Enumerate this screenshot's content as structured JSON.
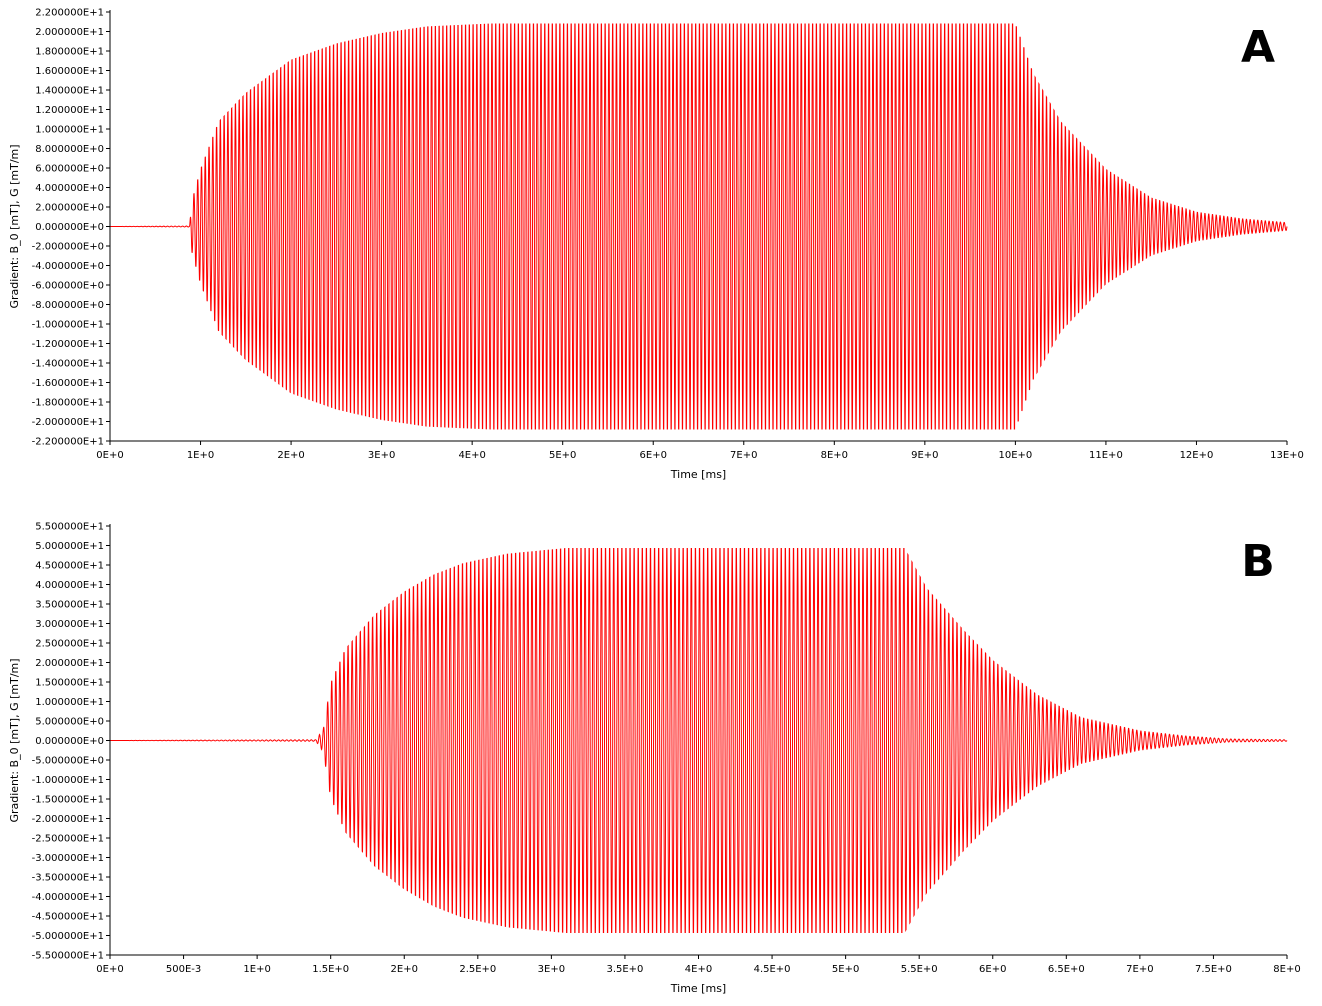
{
  "chart_data": [
    {
      "type": "line",
      "panel_label": "A",
      "title": "",
      "xlabel": "Time [ms]",
      "ylabel": "Gradient: B_0 [mT], G [mT/m]",
      "xlim": [
        0,
        13
      ],
      "ylim": [
        -22,
        22
      ],
      "grid": false,
      "series_color": "#ff0000",
      "x_ticks": [
        0,
        1,
        2,
        3,
        4,
        5,
        6,
        7,
        8,
        9,
        10,
        11,
        12,
        13
      ],
      "x_tick_labels": [
        "0E+0",
        "1E+0",
        "2E+0",
        "3E+0",
        "4E+0",
        "5E+0",
        "6E+0",
        "7E+0",
        "8E+0",
        "9E+0",
        "10E+0",
        "11E+0",
        "12E+0",
        "13E+0"
      ],
      "y_ticks": [
        22,
        20,
        18,
        16,
        14,
        12,
        10,
        8,
        6,
        4,
        2,
        0,
        -2,
        -4,
        -6,
        -8,
        -10,
        -12,
        -14,
        -16,
        -18,
        -20,
        -22
      ],
      "y_tick_labels": [
        "2.200000E+1",
        "2.000000E+1",
        "1.800000E+1",
        "1.600000E+1",
        "1.400000E+1",
        "1.200000E+1",
        "1.000000E+1",
        "8.000000E+0",
        "6.000000E+0",
        "4.000000E+0",
        "2.000000E+0",
        "0.000000E+0",
        "-2.000000E+0",
        "-4.000000E+0",
        "-6.000000E+0",
        "-8.000000E+0",
        "-1.000000E+1",
        "-1.200000E+1",
        "-1.400000E+1",
        "-1.600000E+1",
        "-1.800000E+1",
        "-2.000000E+1",
        "-2.200000E+1"
      ],
      "signal": {
        "description": "oscillating waveform, envelope ramps up, plateaus at peak, then decays",
        "onset_ms": 0.9,
        "plateau_start_ms": 4.2,
        "plateau_end_ms": 10.0,
        "end_ms": 13.0,
        "peak_amplitude": 21.3,
        "cycles_per_ms": 24,
        "envelope": [
          [
            0,
            0
          ],
          [
            0.88,
            0.05
          ],
          [
            0.9,
            2.5
          ],
          [
            1.0,
            6
          ],
          [
            1.2,
            11
          ],
          [
            1.5,
            14
          ],
          [
            2.0,
            17.5
          ],
          [
            2.5,
            19.2
          ],
          [
            3.0,
            20.3
          ],
          [
            3.5,
            21.0
          ],
          [
            4.2,
            21.3
          ],
          [
            10.0,
            21.3
          ],
          [
            10.2,
            16
          ],
          [
            10.5,
            11
          ],
          [
            11.0,
            6
          ],
          [
            11.5,
            3
          ],
          [
            12.0,
            1.5
          ],
          [
            12.5,
            0.8
          ],
          [
            13.0,
            0.4
          ]
        ]
      }
    },
    {
      "type": "line",
      "panel_label": "B",
      "title": "",
      "xlabel": "Time [ms]",
      "ylabel": "Gradient: B_0 [mT], G [mT/m]",
      "xlim": [
        0,
        8
      ],
      "ylim": [
        -55,
        55
      ],
      "grid": false,
      "series_color": "#ff0000",
      "x_ticks": [
        0,
        0.5,
        1,
        1.5,
        2,
        2.5,
        3,
        3.5,
        4,
        4.5,
        5,
        5.5,
        6,
        6.5,
        7,
        7.5,
        8
      ],
      "x_tick_labels": [
        "0E+0",
        "500E-3",
        "1E+0",
        "1.5E+0",
        "2E+0",
        "2.5E+0",
        "3E+0",
        "3.5E+0",
        "4E+0",
        "4.5E+0",
        "5E+0",
        "5.5E+0",
        "6E+0",
        "6.5E+0",
        "7E+0",
        "7.5E+0",
        "8E+0"
      ],
      "y_ticks": [
        55,
        50,
        45,
        40,
        35,
        30,
        25,
        20,
        15,
        10,
        5,
        0,
        -5,
        -10,
        -15,
        -20,
        -25,
        -30,
        -35,
        -40,
        -45,
        -50,
        -55
      ],
      "y_tick_labels": [
        "5.500000E+1",
        "5.000000E+1",
        "4.500000E+1",
        "4.000000E+1",
        "3.500000E+1",
        "3.000000E+1",
        "2.500000E+1",
        "2.000000E+1",
        "1.500000E+1",
        "1.000000E+1",
        "5.000000E+0",
        "0.000000E+0",
        "-5.000000E+0",
        "-1.000000E+1",
        "-1.500000E+1",
        "-2.000000E+1",
        "-2.500000E+1",
        "-3.000000E+1",
        "-3.500000E+1",
        "-4.000000E+1",
        "-4.500000E+1",
        "-5.000000E+1",
        "-5.500000E+1"
      ],
      "signal": {
        "description": "oscillating waveform, envelope ramps up, plateaus at peak, then decays",
        "onset_ms": 1.42,
        "plateau_start_ms": 3.1,
        "plateau_end_ms": 5.4,
        "end_ms": 8.0,
        "peak_amplitude": 50.5,
        "cycles_per_ms": 36,
        "envelope": [
          [
            0,
            0
          ],
          [
            1.4,
            0.2
          ],
          [
            1.45,
            3
          ],
          [
            1.5,
            15
          ],
          [
            1.6,
            24
          ],
          [
            1.8,
            33
          ],
          [
            2.0,
            39
          ],
          [
            2.2,
            43.5
          ],
          [
            2.4,
            46.5
          ],
          [
            2.7,
            49
          ],
          [
            3.1,
            50.5
          ],
          [
            5.4,
            50.5
          ],
          [
            5.55,
            40
          ],
          [
            5.8,
            29
          ],
          [
            6.0,
            21
          ],
          [
            6.3,
            12
          ],
          [
            6.6,
            6
          ],
          [
            7.0,
            2.5
          ],
          [
            7.3,
            1.2
          ],
          [
            7.6,
            0.4
          ],
          [
            8.0,
            0.2
          ]
        ]
      }
    }
  ]
}
